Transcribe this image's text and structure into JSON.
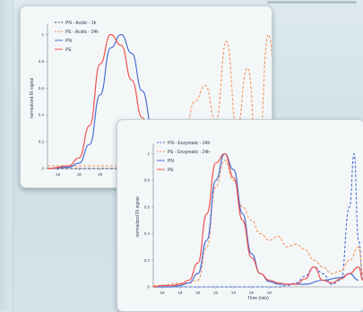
{
  "chart_data": [
    {
      "type": "line",
      "title": "",
      "xlabel": "",
      "ylabel": "normalized RI signal",
      "xlim": [
        15,
        38
      ],
      "ylim": [
        0,
        1.05
      ],
      "x_ticks": [
        "16",
        "18",
        "20"
      ],
      "y_ticks": [
        "0",
        "0.2",
        "0.4",
        "0.6",
        "0.8",
        "1"
      ],
      "legend_position": "top-right",
      "colors": {
        "PN": "#4a6fd4",
        "PE": "#f0534f",
        "PE_dashed": "#f4935a"
      },
      "series": [
        {
          "name": "PN - Acidic - 1h",
          "style": "dashed",
          "color": "#3a4a6b",
          "x": [
            15,
            25,
            27,
            30,
            32,
            33,
            34,
            35,
            36,
            37,
            38
          ],
          "y": [
            0,
            0,
            0,
            0,
            0,
            0,
            0,
            0,
            0,
            0,
            0
          ]
        },
        {
          "name": "PE - Acidic - 24h",
          "style": "dashed",
          "color": "#f4935a",
          "x": [
            15,
            24,
            26,
            27,
            28,
            29,
            30,
            31,
            32,
            33,
            34,
            35,
            36,
            37,
            38
          ],
          "y": [
            0.02,
            0.02,
            0.1,
            0.35,
            0.25,
            0.5,
            0.62,
            0.35,
            0.95,
            0.3,
            0.75,
            0.05,
            1.0,
            0.15,
            0.05
          ]
        },
        {
          "name": "PN",
          "style": "solid",
          "color": "#4a6fd4",
          "x": [
            15,
            17,
            18,
            19,
            20,
            21,
            22,
            23,
            24,
            25,
            26,
            27
          ],
          "y": [
            0,
            0.01,
            0.04,
            0.18,
            0.55,
            0.9,
            1.0,
            0.86,
            0.58,
            0.3,
            0.1,
            0.03
          ]
        },
        {
          "name": "PE",
          "style": "solid",
          "color": "#f0534f",
          "x": [
            15,
            17,
            18,
            19,
            20,
            21,
            22,
            23,
            24,
            25,
            26,
            27
          ],
          "y": [
            0,
            0.02,
            0.08,
            0.32,
            0.78,
            1.0,
            0.92,
            0.66,
            0.38,
            0.15,
            0.05,
            0.01
          ]
        }
      ]
    },
    {
      "type": "line",
      "title": "",
      "xlabel": "Time (min)",
      "ylabel": "normalized RI signal",
      "xlim": [
        15,
        38.5
      ],
      "ylim": [
        0,
        1.05
      ],
      "x_ticks": [
        "16",
        "18",
        "20",
        "22",
        "24",
        "26",
        "28"
      ],
      "y_ticks": [
        "0",
        "0.2",
        "0.4",
        "0.6",
        "0.8",
        "1"
      ],
      "legend_position": "top-left",
      "colors": {
        "PN": "#4a6fd4",
        "PE": "#f0534f",
        "PE_dashed": "#f4935a"
      },
      "series": [
        {
          "name": "PN - Enzymatic - 24h",
          "style": "dashed",
          "color": "#4a6fd4",
          "x": [
            15,
            17,
            19,
            21,
            22,
            23,
            24,
            25,
            26,
            27,
            28,
            29,
            30,
            31,
            32,
            33,
            34,
            35,
            36,
            37,
            37.5,
            38,
            38.5
          ],
          "y": [
            0,
            0,
            0,
            0,
            0,
            0,
            0,
            0,
            0,
            0,
            0,
            0,
            0.01,
            0.03,
            0.08,
            0.15,
            0.1,
            0.02,
            0.05,
            0.6,
            1.0,
            0.35,
            0.05
          ]
        },
        {
          "name": "PE - Enzymatic - 24h",
          "style": "dashed",
          "color": "#f4935a",
          "x": [
            15,
            19,
            20,
            21,
            22,
            23,
            24,
            25,
            26,
            27,
            28,
            29,
            30,
            31,
            32,
            33,
            34,
            35,
            36,
            37,
            38,
            38.5
          ],
          "y": [
            0.01,
            0.03,
            0.05,
            0.3,
            0.75,
            0.95,
            0.8,
            0.6,
            0.5,
            0.4,
            0.35,
            0.38,
            0.3,
            0.32,
            0.28,
            0.2,
            0.15,
            0.1,
            0.12,
            0.2,
            0.3,
            0.1
          ]
        },
        {
          "name": "PN",
          "style": "solid",
          "color": "#4a6fd4",
          "x": [
            15,
            17,
            18,
            19,
            20,
            21,
            22,
            23,
            24,
            25,
            26,
            27,
            28,
            29,
            30,
            32,
            34,
            36,
            37,
            38
          ],
          "y": [
            0,
            0,
            0.01,
            0.03,
            0.1,
            0.35,
            0.8,
            1.0,
            0.88,
            0.55,
            0.25,
            0.1,
            0.04,
            0.02,
            0.02,
            0.02,
            0.05,
            0.07,
            0.1,
            0.05
          ]
        },
        {
          "name": "PE",
          "style": "solid",
          "color": "#f0534f",
          "x": [
            15,
            16,
            17,
            18,
            19,
            20,
            21,
            22,
            23,
            24,
            25,
            26,
            27,
            28,
            29,
            30,
            31,
            32,
            33,
            34,
            35,
            36,
            37,
            38,
            38.5
          ],
          "y": [
            0,
            0.01,
            0.01,
            0.02,
            0.05,
            0.18,
            0.55,
            0.93,
            1.0,
            0.82,
            0.5,
            0.22,
            0.1,
            0.05,
            0.03,
            0.02,
            0.02,
            0.06,
            0.15,
            0.05,
            0.03,
            0.06,
            0.1,
            0.15,
            0.05
          ]
        }
      ]
    }
  ]
}
